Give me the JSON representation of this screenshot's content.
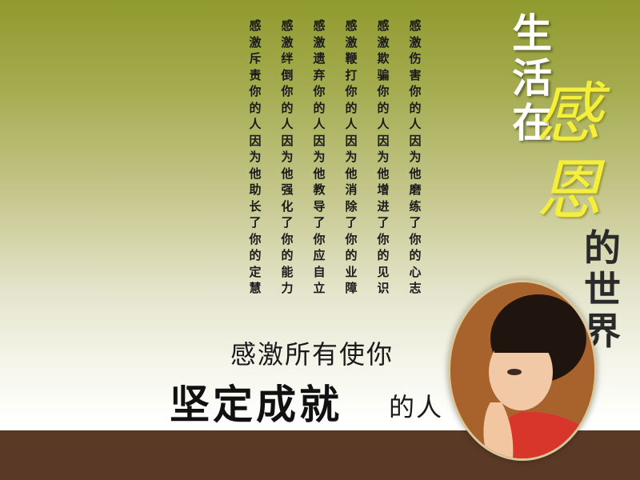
{
  "poem": {
    "columns": [
      "感激伤害你的人因为他磨练了你的心志",
      "感激欺骗你的人因为他增进了你的见识",
      "感激鞭打你的人因为他消除了你的业障",
      "感激遗弃你的人因为他教导了你应自立",
      "感激绊倒你的人因为他强化了你的能力",
      "感激斥责你的人因为他助长了你的定慧"
    ]
  },
  "title": {
    "line1": "生活在",
    "big1": "感",
    "big2": "恩",
    "line2": "的世界"
  },
  "slogan": {
    "line1": "感激所有使你",
    "bold": "坚定成就",
    "tail": "的人"
  },
  "colors": {
    "background_top": "#8f9a2e",
    "background_bottom": "#ffffff",
    "footer_band": "#5a3a27",
    "title_white": "#ffffff",
    "title_yellow": "#f4ef3a"
  },
  "photo": {
    "icon": "child-praying-photo"
  }
}
